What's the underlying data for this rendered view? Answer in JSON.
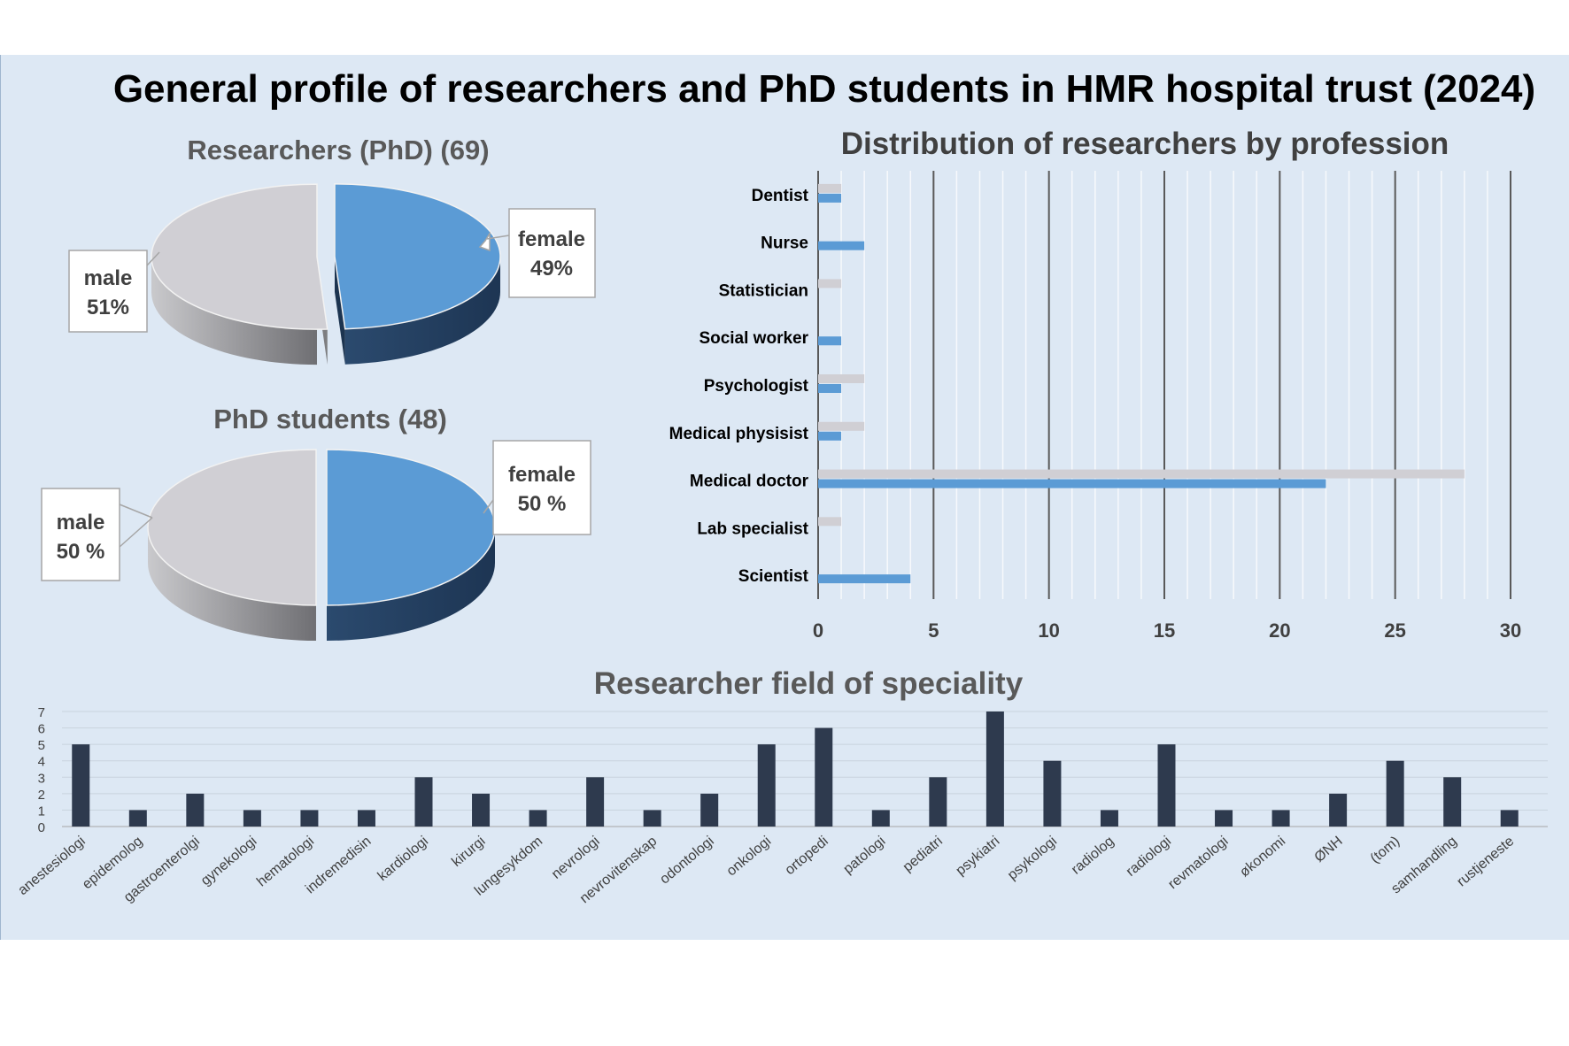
{
  "title": "General profile of researchers and PhD students in HMR hospital trust (2024)",
  "colors": {
    "female": "#5b9bd5",
    "male": "#d0cfd4",
    "specialty_bar": "#2e3a4e",
    "background": "#dde8f4"
  },
  "chart_data": [
    {
      "type": "pie",
      "title": "Researchers (PhD) (69)",
      "slices": [
        {
          "label": "female",
          "value": 49,
          "label_text": "49%"
        },
        {
          "label": "male",
          "value": 51,
          "label_text": "51%"
        }
      ]
    },
    {
      "type": "pie",
      "title": "PhD students (48)",
      "slices": [
        {
          "label": "female",
          "value": 50,
          "label_text": "50 %"
        },
        {
          "label": "male",
          "value": 50,
          "label_text": "50 %"
        }
      ]
    },
    {
      "type": "bar",
      "orientation": "horizontal",
      "title": "Distribution of researchers by profession",
      "categories": [
        "Dentist",
        "Nurse",
        "Statistician",
        "Social worker",
        "Psychologist",
        "Medical physisist",
        "Medical doctor",
        "Lab specialist",
        "Scientist"
      ],
      "series": [
        {
          "name": "male",
          "values": [
            1,
            0,
            1,
            0,
            2,
            2,
            28,
            1,
            0
          ]
        },
        {
          "name": "female",
          "values": [
            1,
            2,
            0,
            1,
            1,
            1,
            22,
            0,
            4
          ]
        }
      ],
      "xlim": [
        0,
        30
      ],
      "xticks": [
        "0",
        "5",
        "10",
        "15",
        "20",
        "25",
        "30"
      ]
    },
    {
      "type": "bar",
      "title": "Researcher field of speciality",
      "categories": [
        "anestesiologi",
        "epidemolog",
        "gastroenterolgi",
        "gynekologi",
        "hematologi",
        "indremedisin",
        "kardiologi",
        "kirurgi",
        "lungesykdom",
        "nevrologi",
        "nevrovitenskap",
        "odontologi",
        "onkologi",
        "ortopedi",
        "patologi",
        "pediatri",
        "psykiatri",
        "psykologi",
        "radiolog",
        "radiologi",
        "revmatologi",
        "økonomi",
        "ØNH",
        "(tom)",
        "samhandling",
        "rustjeneste"
      ],
      "values": [
        5,
        1,
        2,
        1,
        1,
        1,
        3,
        2,
        1,
        3,
        1,
        2,
        5,
        6,
        1,
        3,
        7,
        4,
        1,
        5,
        1,
        1,
        2,
        4,
        3,
        1
      ],
      "ylim": [
        0,
        7
      ],
      "yticks": [
        "0",
        "1",
        "2",
        "3",
        "4",
        "5",
        "6",
        "7"
      ]
    }
  ]
}
